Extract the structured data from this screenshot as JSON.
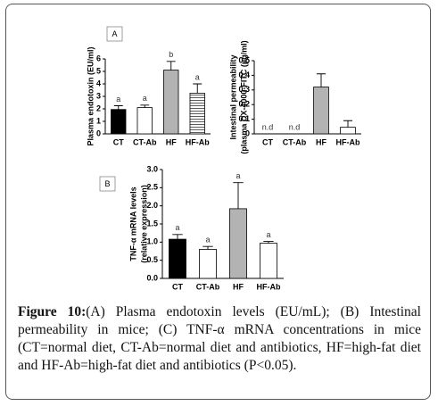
{
  "chart_data": [
    {
      "type": "bar",
      "panel": "A",
      "ylabel": [
        "Plasma endotoxin (EU/ml)"
      ],
      "categories": [
        "CT",
        "CT-Ab",
        "HF",
        "HF-Ab"
      ],
      "values": [
        1.95,
        2.1,
        5.1,
        3.25
      ],
      "errors": [
        0.3,
        0.2,
        0.7,
        0.75
      ],
      "colors": [
        "#000000",
        "#ffffff",
        "#b3b3b3",
        "stripes"
      ],
      "annotations": [
        "a",
        "a",
        "b",
        "a"
      ],
      "ylim": [
        0,
        6
      ],
      "yticks": [
        0,
        1,
        2,
        3,
        4,
        5,
        6
      ]
    },
    {
      "type": "bar",
      "ylabel": [
        "Intestinal permeability",
        "(plasma DX-4000-FITC (µg/ml)"
      ],
      "categories": [
        "CT",
        "CT-Ab",
        "HF",
        "HF-Ab"
      ],
      "values": [
        null,
        null,
        0.32,
        0.045
      ],
      "errors": [
        null,
        null,
        0.09,
        0.045
      ],
      "colors": [
        "#000000",
        "#ffffff",
        "#b3b3b3",
        "#ffffff"
      ],
      "annotations": [
        "n.d",
        "n.d",
        null,
        null
      ],
      "ylim": [
        0,
        0.5
      ],
      "yticks": [
        0,
        0.1,
        0.2,
        0.3,
        0.4,
        0.5
      ]
    },
    {
      "type": "bar",
      "panel": "B",
      "ylabel": [
        "TNF-α mRNA levels",
        "(relative expression)"
      ],
      "categories": [
        "CT",
        "CT-Ab",
        "HF",
        "HF-Ab"
      ],
      "values": [
        1.08,
        0.8,
        1.92,
        0.97
      ],
      "errors": [
        0.13,
        0.08,
        0.72,
        0.05
      ],
      "colors": [
        "#000000",
        "#ffffff",
        "#b3b3b3",
        "#ffffff"
      ],
      "annotations": [
        "a",
        "a",
        "a",
        "a"
      ],
      "ylim": [
        0,
        3
      ],
      "yticks": [
        {
          "value": 0,
          "label": "0.0"
        },
        0.5,
        {
          "value": 1,
          "label": "1.0"
        },
        1.5,
        {
          "value": 2,
          "label": "2.0"
        },
        2.5,
        {
          "value": 3,
          "label": "3.0"
        }
      ]
    }
  ],
  "caption": {
    "label": "Figure 10:",
    "text": "(A) Plasma endotoxin levels (EU/mL); (B) Intestinal permeability in mice; (C) TNF-α mRNA concentrations in mice (CT=normal diet, CT-Ab=normal diet and antibiotics, HF=high-fat diet and HF-Ab=high-fat diet and antibiotics (P<0.05)."
  }
}
